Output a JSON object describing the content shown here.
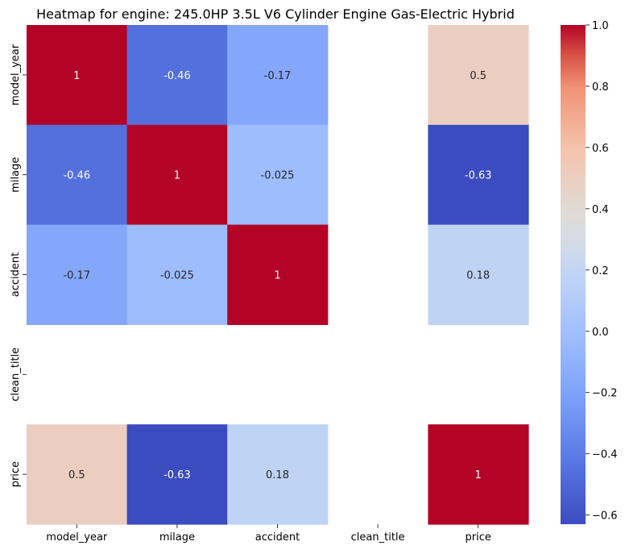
{
  "chart_data": {
    "type": "heatmap",
    "title": "Heatmap for engine: 245.0HP 3.5L V6 Cylinder Engine Gas-Electric Hybrid",
    "xlabel": "",
    "ylabel": "",
    "x_categories": [
      "model_year",
      "milage",
      "accident",
      "clean_title",
      "price"
    ],
    "y_categories": [
      "model_year",
      "milage",
      "accident",
      "clean_title",
      "price"
    ],
    "values": [
      [
        1,
        -0.46,
        -0.17,
        null,
        0.5
      ],
      [
        -0.46,
        1,
        -0.025,
        null,
        -0.63
      ],
      [
        -0.17,
        -0.025,
        1,
        null,
        0.18
      ],
      [
        null,
        null,
        null,
        null,
        null
      ],
      [
        0.5,
        -0.63,
        0.18,
        null,
        1
      ]
    ],
    "annotations": [
      [
        "1",
        "-0.46",
        "-0.17",
        "",
        "0.5"
      ],
      [
        "-0.46",
        "1",
        "-0.025",
        "",
        "-0.63"
      ],
      [
        "-0.17",
        "-0.025",
        "1",
        "",
        "0.18"
      ],
      [
        "",
        "",
        "",
        "",
        ""
      ],
      [
        "0.5",
        "-0.63",
        "0.18",
        "",
        "1"
      ]
    ],
    "colormap": "coolwarm",
    "vmin": -0.63,
    "vmax": 1.0,
    "colorbar_ticks": [
      1.0,
      0.8,
      0.6,
      0.4,
      0.2,
      0.0,
      -0.2,
      -0.4,
      -0.6
    ],
    "colorbar_tick_labels": [
      "1.0",
      "0.8",
      "0.6",
      "0.4",
      "0.2",
      "0.0",
      "−0.2",
      "−0.4",
      "−0.6"
    ]
  }
}
